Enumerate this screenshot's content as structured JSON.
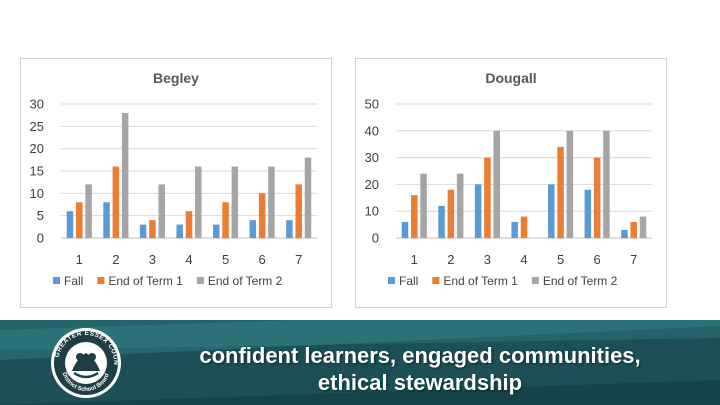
{
  "chart_data": [
    {
      "type": "bar",
      "title": "Begley",
      "categories": [
        "1",
        "2",
        "3",
        "4",
        "5",
        "6",
        "7"
      ],
      "ylim": [
        0,
        30
      ],
      "yticks": [
        0,
        5,
        10,
        15,
        20,
        25,
        30
      ],
      "grid": true,
      "legend": "bottom",
      "series": [
        {
          "name": "Fall",
          "color": "#5b9bd5",
          "values": [
            6,
            8,
            3,
            3,
            3,
            4,
            4
          ]
        },
        {
          "name": "End of Term 1",
          "color": "#ed7d31",
          "values": [
            8,
            16,
            4,
            6,
            8,
            10,
            12
          ]
        },
        {
          "name": "End of Term 2",
          "color": "#a5a5a5",
          "values": [
            12,
            28,
            12,
            16,
            16,
            16,
            18
          ]
        }
      ]
    },
    {
      "type": "bar",
      "title": "Dougall",
      "categories": [
        "1",
        "2",
        "3",
        "4",
        "5",
        "6",
        "7"
      ],
      "ylim": [
        0,
        50
      ],
      "yticks": [
        0,
        10,
        20,
        30,
        40,
        50
      ],
      "grid": true,
      "legend": "bottom",
      "series": [
        {
          "name": "Fall",
          "color": "#5b9bd5",
          "values": [
            6,
            12,
            20,
            6,
            20,
            18,
            3
          ]
        },
        {
          "name": "End of Term 1",
          "color": "#ed7d31",
          "values": [
            16,
            18,
            30,
            8,
            34,
            30,
            6
          ]
        },
        {
          "name": "End of Term 2",
          "color": "#a5a5a5",
          "values": [
            24,
            24,
            40,
            0,
            40,
            40,
            8
          ]
        }
      ]
    }
  ],
  "footer": {
    "slogan_line_1": "confident learners, engaged communities,",
    "slogan_line_2": "ethical stewardship",
    "seal_text": "GREATER ESSEX COUNTY District School Board",
    "colors": {
      "band": "#1c4f57",
      "accent": "#2f8a8f"
    }
  }
}
